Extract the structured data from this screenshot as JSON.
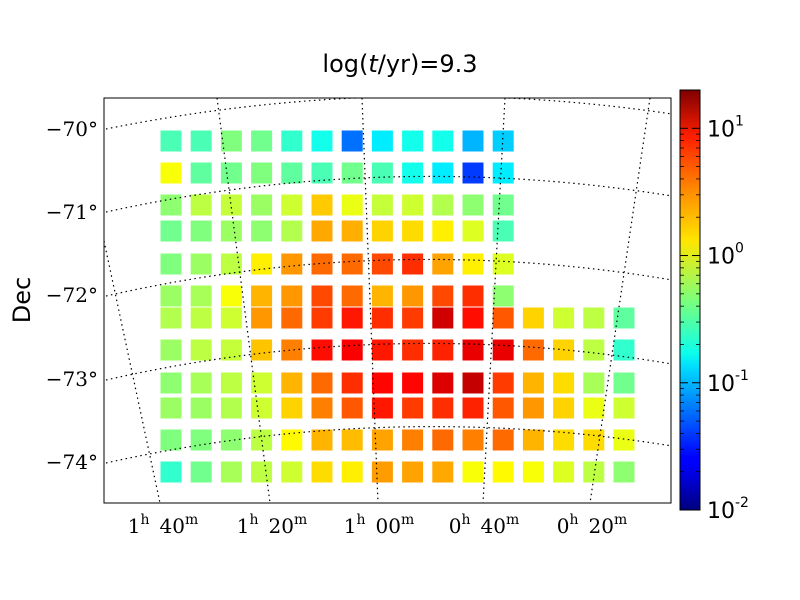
{
  "chart_data": {
    "type": "heatmap",
    "title_prefix": "log(",
    "title_var": "t",
    "title_suffix": "/yr)=9.3",
    "ylabel": "Dec",
    "ra_ticks": [
      {
        "h": "1",
        "hs": "h",
        "m": "40",
        "ms": "m"
      },
      {
        "h": "1",
        "hs": "h",
        "m": "20",
        "ms": "m"
      },
      {
        "h": "1",
        "hs": "h",
        "m": "00",
        "ms": "m"
      },
      {
        "h": "0",
        "hs": "h",
        "m": "40",
        "ms": "m"
      },
      {
        "h": "0",
        "hs": "h",
        "m": "20",
        "ms": "m"
      }
    ],
    "dec_ticks": [
      "−70°",
      "−71°",
      "−72°",
      "−73°",
      "−74°"
    ],
    "colorbar": {
      "scale": "log",
      "range": [
        0.01,
        20
      ],
      "ticks": [
        {
          "base": "10",
          "exp": "1",
          "value": 10
        },
        {
          "base": "10",
          "exp": "0",
          "value": 1
        },
        {
          "base": "10",
          "exp": "-1",
          "value": 0.1
        },
        {
          "base": "10",
          "exp": "-2",
          "value": 0.01
        }
      ]
    },
    "grid_columns": 16,
    "rows": [
      [
        0.3,
        0.3,
        0.45,
        0.4,
        0.25,
        0.2,
        0.06,
        0.15,
        0.2,
        0.2,
        0.1,
        0.12,
        null,
        null,
        null,
        null
      ],
      [
        1.1,
        0.35,
        0.4,
        0.45,
        0.35,
        0.3,
        0.4,
        0.3,
        0.2,
        0.15,
        0.04,
        0.15,
        null,
        null,
        null,
        null
      ],
      [
        0.5,
        0.7,
        0.75,
        0.55,
        0.8,
        1.7,
        1.0,
        0.75,
        0.8,
        0.65,
        0.5,
        0.4,
        null,
        null,
        null,
        null
      ],
      [
        0.4,
        0.45,
        0.55,
        0.5,
        0.65,
        2.2,
        2.1,
        1.6,
        1.5,
        1.3,
        0.9,
        0.3,
        null,
        null,
        null,
        null
      ],
      [
        0.45,
        0.55,
        0.7,
        1.3,
        2.5,
        3.5,
        3.5,
        4.5,
        5.5,
        2.3,
        1.3,
        0.9,
        null,
        null,
        null,
        null
      ],
      [
        0.55,
        0.6,
        1.1,
        2.0,
        2.5,
        4.5,
        3.5,
        2.0,
        2.5,
        4.5,
        5.5,
        0.5,
        null,
        null,
        null,
        null
      ],
      [
        0.65,
        0.7,
        0.8,
        2.5,
        3.5,
        5.0,
        6.5,
        5.5,
        5.0,
        11,
        7,
        4.0,
        1.6,
        0.8,
        0.7,
        0.35
      ],
      [
        0.55,
        0.7,
        0.75,
        1.8,
        3.0,
        7,
        8,
        6.5,
        5.5,
        6,
        9,
        9,
        3.5,
        1.6,
        0.7,
        0.25
      ],
      [
        0.5,
        0.6,
        0.7,
        0.8,
        2.0,
        3.5,
        5.5,
        7.5,
        7.5,
        10,
        12,
        5,
        2.0,
        1.5,
        0.6,
        0.4
      ],
      [
        0.55,
        0.55,
        0.65,
        0.8,
        1.6,
        3.0,
        4.0,
        6.5,
        5.0,
        5.5,
        6,
        4.0,
        2.5,
        1.6,
        1.0,
        0.8
      ],
      [
        0.45,
        0.45,
        0.5,
        0.7,
        1.2,
        2.0,
        1.9,
        2.3,
        3.0,
        3.5,
        3.0,
        3.5,
        2.0,
        1.5,
        1.5,
        1.0
      ],
      [
        0.25,
        0.4,
        0.6,
        0.7,
        0.8,
        1.5,
        1.3,
        2.4,
        2.3,
        2.2,
        1.1,
        1.2,
        1.1,
        0.9,
        0.7,
        0.5
      ]
    ]
  }
}
